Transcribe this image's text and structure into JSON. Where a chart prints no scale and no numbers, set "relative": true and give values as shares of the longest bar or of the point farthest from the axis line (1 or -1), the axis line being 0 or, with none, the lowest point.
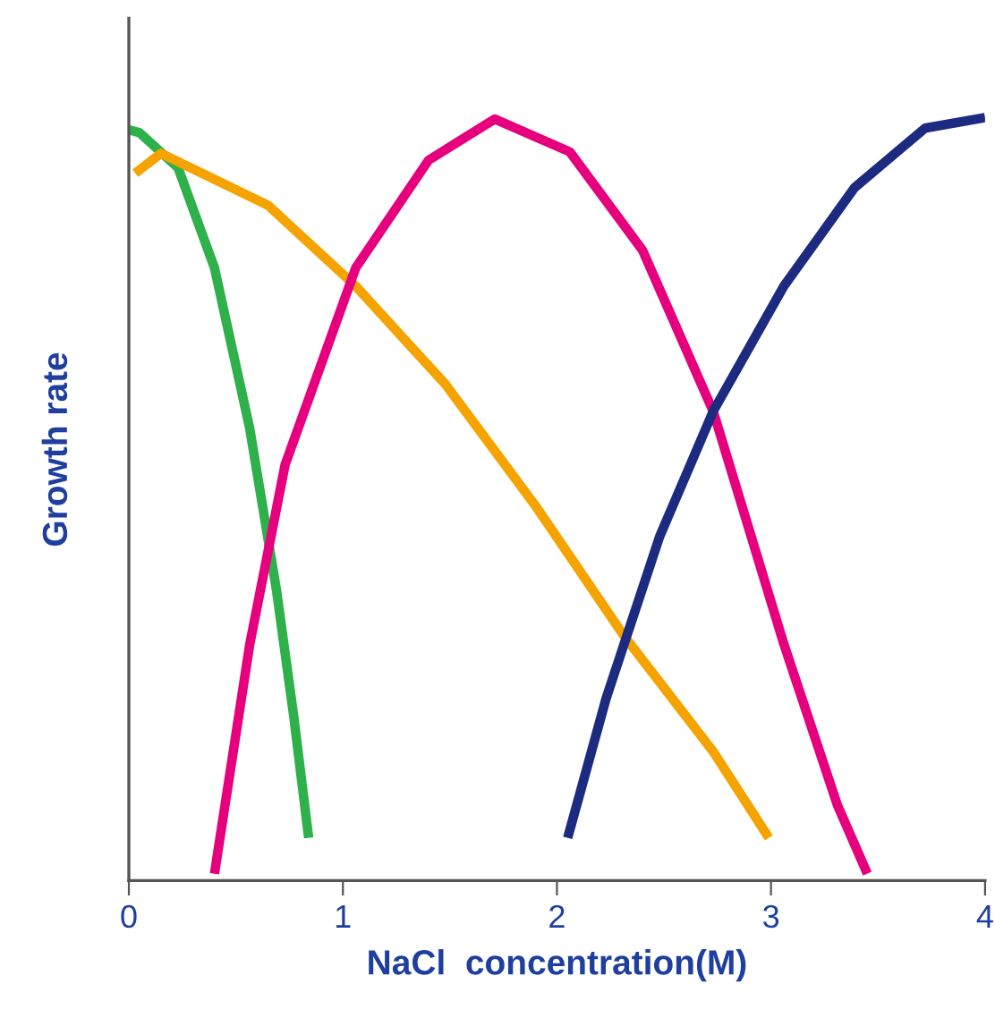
{
  "chart_data": {
    "type": "line",
    "relative": true,
    "xlabel": "NaCl  concentration(M)",
    "ylabel": "Growth rate",
    "xlim": [
      0,
      4
    ],
    "xticks": [
      0,
      1,
      2,
      3,
      4
    ],
    "marker": "none",
    "line_style": "solid",
    "series": [
      {
        "color": "#2eb04a",
        "x": [
          0,
          0.05,
          0.23,
          0.4,
          0.565,
          0.69,
          0.77,
          0.84
        ],
        "values": [
          0.984,
          0.98,
          0.934,
          0.803,
          0.592,
          0.38,
          0.216,
          0.056
        ]
      },
      {
        "color": "#f5a300",
        "x": [
          0.03,
          0.15,
          0.65,
          1.06,
          1.48,
          1.9,
          2.31,
          2.73,
          2.99
        ],
        "values": [
          0.927,
          0.953,
          0.885,
          0.779,
          0.65,
          0.491,
          0.322,
          0.169,
          0.056
        ]
      },
      {
        "color": "#e6007e",
        "x": [
          0.4,
          0.565,
          0.73,
          1.06,
          1.4,
          1.71,
          2.06,
          2.4,
          2.73,
          3.06,
          3.31,
          3.45
        ],
        "values": [
          0.009,
          0.31,
          0.545,
          0.803,
          0.944,
          0.998,
          0.955,
          0.826,
          0.615,
          0.31,
          0.099,
          0.009
        ]
      },
      {
        "color": "#1c2a80",
        "x": [
          2.05,
          2.23,
          2.48,
          2.73,
          3.06,
          3.39,
          3.72,
          4.0
        ],
        "values": [
          0.056,
          0.239,
          0.451,
          0.615,
          0.779,
          0.908,
          0.986,
          1.0
        ]
      }
    ]
  }
}
